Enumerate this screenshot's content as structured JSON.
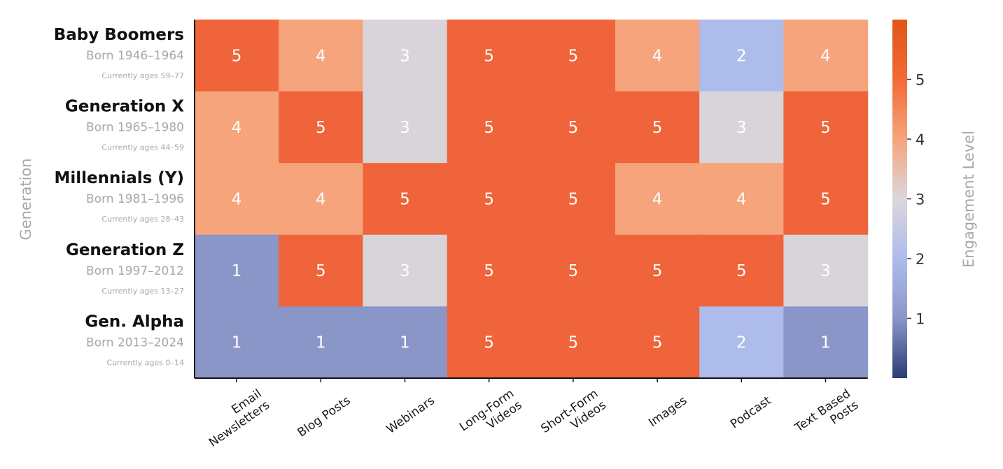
{
  "chart_data": {
    "type": "heatmap",
    "title": "",
    "ylabel": "Generation",
    "colorbar_label": "Engagement Level",
    "colorbar_ticks": [
      1,
      2,
      3,
      4,
      5
    ],
    "colorbar_range": [
      0,
      6
    ],
    "colors": {
      "1": "#8a96c8",
      "2": "#aebcec",
      "3": "#d9d4d9",
      "4": "#f5a47c",
      "5": "#ef643a"
    },
    "colorbar_gradient": [
      "#2b3b75",
      "#8a96c8",
      "#aebcec",
      "#dcd6dc",
      "#f5a47c",
      "#f26a35",
      "#e05616"
    ],
    "columns": [
      [
        "Email",
        "Newsletters"
      ],
      [
        "Blog Posts"
      ],
      [
        "Webinars"
      ],
      [
        "Long-Form",
        "Videos"
      ],
      [
        "Short-Form",
        "Videos"
      ],
      [
        "Images"
      ],
      [
        "Podcast"
      ],
      [
        "Text Based",
        "Posts"
      ]
    ],
    "rows": [
      {
        "name": "Baby Boomers",
        "born": "Born 1946–1964",
        "ages": "Currently ages 59–77"
      },
      {
        "name": "Generation X",
        "born": "Born 1965–1980",
        "ages": "Currently ages 44–59"
      },
      {
        "name": "Millennials (Y)",
        "born": "Born 1981–1996",
        "ages": "Currently ages 28–43"
      },
      {
        "name": "Generation Z",
        "born": "Born 1997–2012",
        "ages": "Currently ages 13–27"
      },
      {
        "name": "Gen. Alpha",
        "born": "Born 2013–2024",
        "ages": "Currently ages 0–14"
      }
    ],
    "values": [
      [
        5,
        4,
        3,
        5,
        5,
        4,
        2,
        4
      ],
      [
        4,
        5,
        3,
        5,
        5,
        5,
        3,
        5
      ],
      [
        4,
        4,
        5,
        5,
        5,
        4,
        4,
        5
      ],
      [
        1,
        5,
        3,
        5,
        5,
        5,
        5,
        3
      ],
      [
        1,
        1,
        1,
        5,
        5,
        5,
        2,
        1
      ]
    ]
  }
}
